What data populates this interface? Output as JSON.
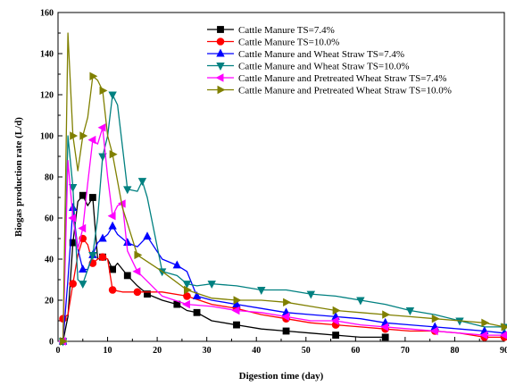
{
  "chart_data": {
    "type": "line",
    "title": "",
    "xlabel": "Digestion time (day)",
    "ylabel": "Biogas production rate (L/d)",
    "xlim": [
      0,
      90
    ],
    "ylim": [
      0,
      160
    ],
    "xticks": [
      0,
      10,
      20,
      30,
      40,
      50,
      60,
      70,
      80,
      90
    ],
    "yticks": [
      0,
      20,
      40,
      60,
      80,
      100,
      120,
      140,
      160
    ],
    "grid": false,
    "legend_position": "top-right",
    "series": [
      {
        "name": "Cattle Manure TS=7.4%",
        "color": "#000000",
        "marker": "square",
        "x": [
          1,
          2,
          3,
          4,
          5,
          6,
          7,
          8,
          9,
          10,
          11,
          12,
          14,
          16,
          18,
          21,
          24,
          26,
          28,
          31,
          36,
          41,
          46,
          51,
          56,
          61,
          66
        ],
        "y": [
          0,
          12,
          48,
          68,
          71,
          66,
          70,
          40,
          41,
          40,
          35,
          38,
          32,
          27,
          23,
          20,
          18,
          15,
          14,
          10,
          8,
          6,
          5,
          4,
          3,
          2,
          2
        ]
      },
      {
        "name": "Cattle Manure TS=10.0%",
        "color": "#ff0000",
        "marker": "circle",
        "x": [
          1,
          2,
          3,
          4,
          5,
          6,
          7,
          8,
          9,
          10,
          11,
          13,
          16,
          21,
          26,
          31,
          36,
          41,
          46,
          51,
          56,
          61,
          66,
          71,
          76,
          81,
          86,
          90
        ],
        "y": [
          11,
          13,
          28,
          42,
          50,
          47,
          38,
          40,
          41,
          40,
          25,
          24,
          24,
          24,
          22,
          18,
          16,
          13,
          11,
          9,
          8,
          7,
          6,
          5,
          5,
          4,
          2,
          2
        ]
      },
      {
        "name": "Cattle Manure and Wheat Straw TS=7.4%",
        "color": "#0000ff",
        "marker": "triangle-up",
        "x": [
          1,
          2,
          3,
          4,
          5,
          6,
          7,
          8,
          9,
          10,
          11,
          12,
          14,
          16,
          18,
          21,
          24,
          26,
          28,
          31,
          36,
          41,
          46,
          51,
          56,
          61,
          66,
          71,
          76,
          81,
          86,
          90
        ],
        "y": [
          0,
          30,
          65,
          45,
          35,
          35,
          42,
          48,
          50,
          52,
          56,
          52,
          48,
          46,
          51,
          40,
          37,
          34,
          22,
          20,
          18,
          16,
          14,
          13,
          12,
          11,
          9,
          8,
          7,
          6,
          5,
          4
        ]
      },
      {
        "name": "Cattle Manure and Wheat Straw TS=10.0%",
        "color": "#008080",
        "marker": "triangle-down",
        "x": [
          1,
          2,
          3,
          4,
          5,
          6,
          7,
          8,
          9,
          10,
          11,
          12,
          14,
          16,
          17,
          18,
          21,
          24,
          26,
          28,
          31,
          36,
          41,
          46,
          51,
          56,
          61,
          66,
          71,
          76,
          81,
          86,
          90
        ],
        "y": [
          0,
          100,
          75,
          30,
          28,
          35,
          42,
          60,
          90,
          100,
          120,
          115,
          74,
          73,
          78,
          70,
          34,
          32,
          28,
          27,
          28,
          27,
          25,
          25,
          23,
          22,
          20,
          18,
          15,
          13,
          10,
          7,
          7
        ]
      },
      {
        "name": "Cattle Manure and Pretreated Wheat Straw TS=7.4%",
        "color": "#ff00ff",
        "marker": "triangle-left",
        "x": [
          1,
          2,
          3,
          4,
          5,
          6,
          7,
          8,
          9,
          10,
          11,
          12,
          13,
          14,
          16,
          21,
          26,
          31,
          36,
          41,
          46,
          51,
          56,
          61,
          66,
          71,
          76,
          81,
          86,
          90
        ],
        "y": [
          0,
          88,
          60,
          45,
          55,
          77,
          98,
          96,
          104,
          80,
          61,
          66,
          67,
          44,
          34,
          22,
          18,
          17,
          15,
          14,
          12,
          10,
          10,
          8,
          7,
          6,
          5,
          4,
          3,
          3
        ]
      },
      {
        "name": "Cattle Manure and Pretreated Wheat Straw TS=10.0%",
        "color": "#808000",
        "marker": "triangle-right",
        "x": [
          1,
          2,
          3,
          4,
          5,
          6,
          7,
          8,
          9,
          10,
          11,
          13,
          16,
          21,
          26,
          31,
          36,
          41,
          46,
          51,
          56,
          61,
          66,
          71,
          76,
          81,
          86,
          90
        ],
        "y": [
          0,
          150,
          100,
          83,
          100,
          109,
          129,
          127,
          122,
          100,
          91,
          65,
          42,
          34,
          25,
          21,
          20,
          20,
          19,
          17,
          15,
          14,
          13,
          12,
          11,
          10,
          9,
          7
        ]
      }
    ]
  }
}
